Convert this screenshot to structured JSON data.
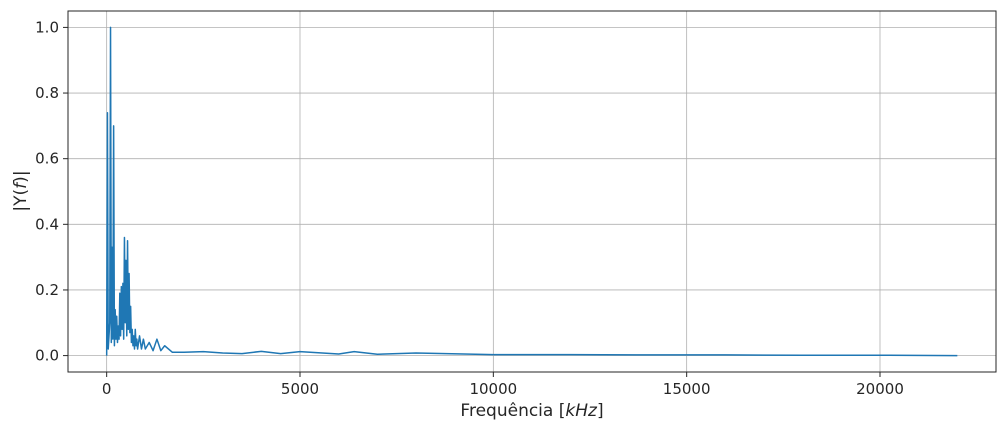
{
  "chart_data": {
    "type": "line",
    "xlabel": "Frequência [kHz]",
    "xlabel_parts": {
      "prefix": "Frequência [",
      "unit": "kHz",
      "suffix": "]"
    },
    "ylabel": "|Y(f)|",
    "ylabel_parts": {
      "open": "|Y(",
      "var": "f",
      "close": ")|"
    },
    "xlim": [
      -1000,
      23000
    ],
    "ylim": [
      -0.05,
      1.05
    ],
    "xticks": [
      0,
      5000,
      10000,
      15000,
      20000
    ],
    "xtick_labels": [
      "0",
      "5000",
      "10000",
      "15000",
      "20000"
    ],
    "yticks": [
      0.0,
      0.2,
      0.4,
      0.6,
      0.8,
      1.0
    ],
    "ytick_labels": [
      "0.0",
      "0.2",
      "0.4",
      "0.6",
      "0.8",
      "1.0"
    ],
    "grid": true,
    "line_color": "#1f77b4",
    "series": [
      {
        "x": [
          0,
          20,
          40,
          60,
          80,
          100,
          120,
          140,
          160,
          180,
          200,
          220,
          240,
          260,
          280,
          300,
          320,
          340,
          360,
          380,
          400,
          420,
          440,
          460,
          480,
          500,
          520,
          540,
          560,
          580,
          600,
          620,
          640,
          660,
          680,
          700,
          720,
          740,
          760,
          780,
          800,
          850,
          900,
          950,
          1000,
          1100,
          1200,
          1300,
          1400,
          1500,
          1700,
          2000,
          2500,
          3000,
          3500,
          4000,
          4500,
          5000,
          6000,
          6400,
          7000,
          8000,
          10000,
          12000,
          14000,
          16000,
          18000,
          20000,
          22000
        ],
        "y": [
          0.0,
          0.74,
          0.02,
          0.06,
          0.1,
          1.0,
          0.04,
          0.33,
          0.05,
          0.7,
          0.03,
          0.14,
          0.05,
          0.12,
          0.04,
          0.09,
          0.05,
          0.19,
          0.06,
          0.21,
          0.08,
          0.22,
          0.05,
          0.36,
          0.1,
          0.29,
          0.06,
          0.35,
          0.08,
          0.25,
          0.07,
          0.15,
          0.04,
          0.08,
          0.03,
          0.06,
          0.02,
          0.08,
          0.03,
          0.05,
          0.02,
          0.06,
          0.02,
          0.05,
          0.02,
          0.04,
          0.015,
          0.05,
          0.015,
          0.03,
          0.01,
          0.01,
          0.012,
          0.008,
          0.006,
          0.013,
          0.006,
          0.012,
          0.005,
          0.012,
          0.004,
          0.008,
          0.003,
          0.003,
          0.002,
          0.002,
          0.001,
          0.001,
          0.0
        ]
      }
    ]
  }
}
